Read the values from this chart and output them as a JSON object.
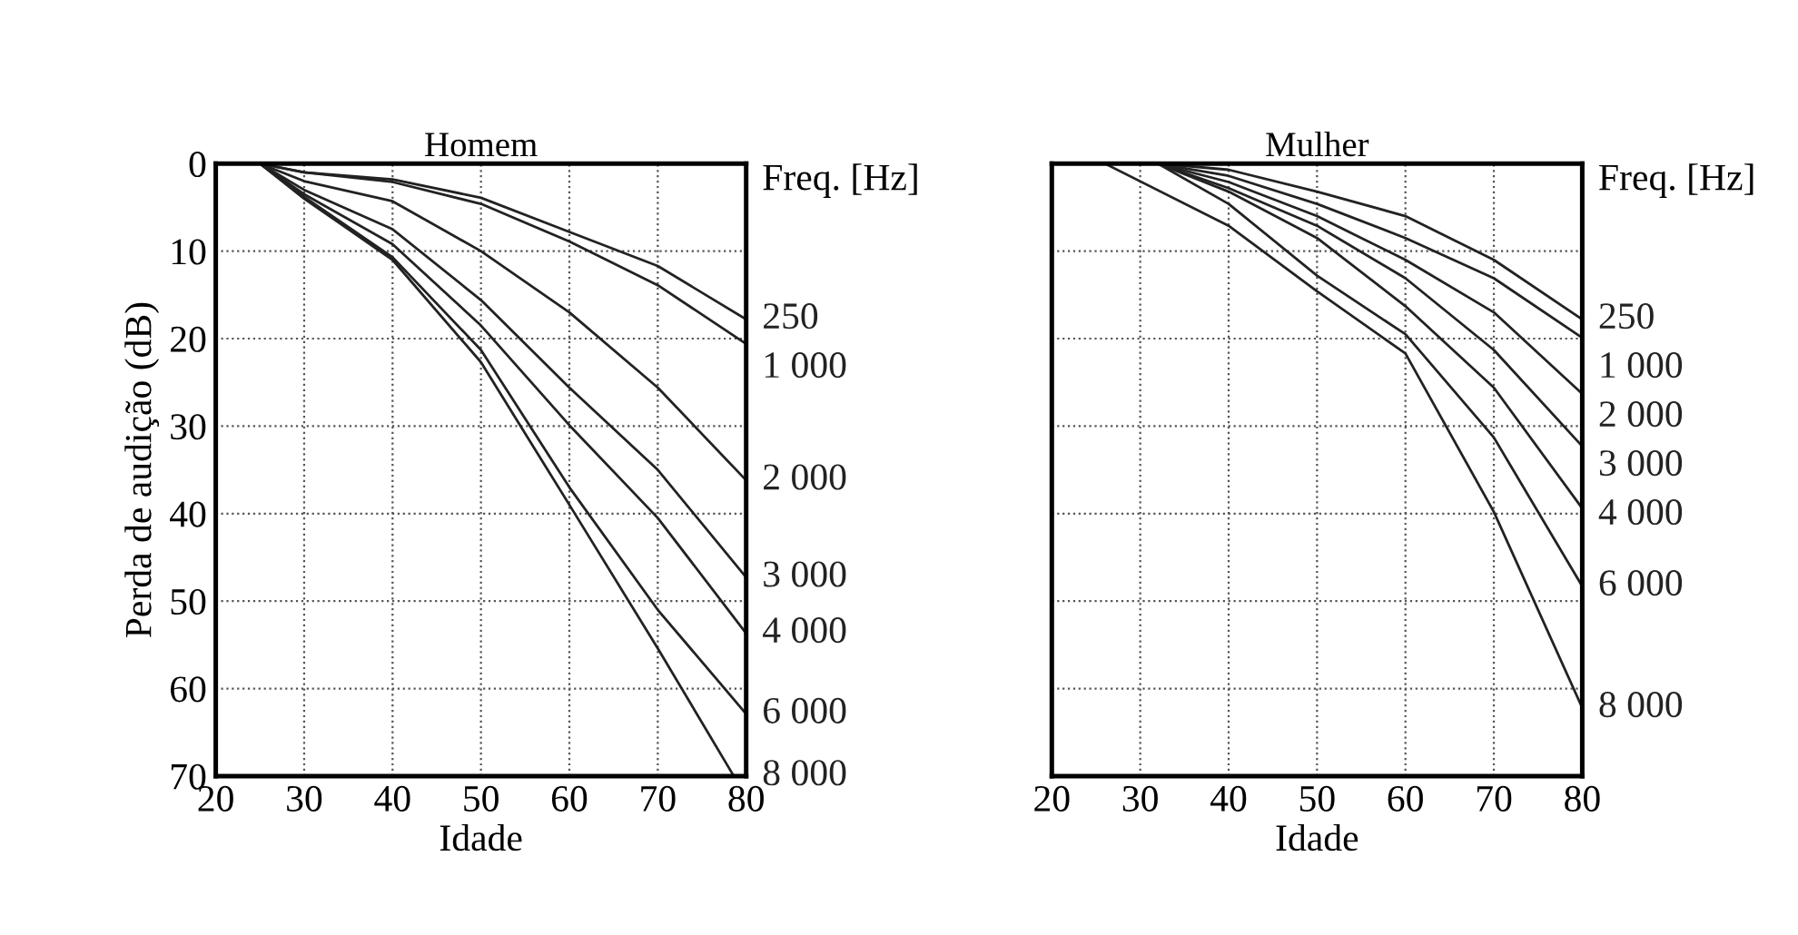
{
  "chart_data": [
    {
      "type": "line",
      "title": "Homem",
      "xlabel": "Idade",
      "ylabel": "Perda de audição (dB)",
      "legend_title": "Freq. [Hz]",
      "xlim": [
        20,
        80
      ],
      "ylim": [
        70,
        0
      ],
      "xticks": [
        20,
        30,
        40,
        50,
        60,
        70,
        80
      ],
      "yticks": [
        0,
        10,
        20,
        30,
        40,
        50,
        60,
        70
      ],
      "grid": true,
      "line_style": "solid",
      "marker": "none",
      "series": [
        {
          "name": "250",
          "color": "#222222",
          "x": [
            25,
            30,
            40,
            50,
            60,
            70,
            80
          ],
          "values": [
            0,
            1,
            1.8,
            3.9,
            7.8,
            11.7,
            17.8
          ]
        },
        {
          "name": "1 000",
          "color": "#222222",
          "x": [
            25,
            30,
            40,
            50,
            60,
            70,
            80
          ],
          "values": [
            0,
            1,
            2.1,
            4.6,
            8.9,
            13.9,
            20.6
          ]
        },
        {
          "name": "2 000",
          "color": "#222222",
          "x": [
            25,
            30,
            40,
            50,
            60,
            70,
            80
          ],
          "values": [
            0,
            2,
            4.3,
            10,
            17,
            25.6,
            36.2
          ]
        },
        {
          "name": "3 000",
          "color": "#222222",
          "x": [
            25,
            30,
            40,
            50,
            60,
            70,
            80
          ],
          "values": [
            0,
            3,
            7.5,
            15.6,
            25.6,
            35,
            47.3
          ]
        },
        {
          "name": "4 000",
          "color": "#222222",
          "x": [
            25,
            30,
            40,
            50,
            60,
            70,
            80
          ],
          "values": [
            0,
            3.5,
            9.2,
            18.5,
            29.9,
            40.5,
            53.7
          ]
        },
        {
          "name": "6 000",
          "color": "#222222",
          "x": [
            25,
            30,
            40,
            50,
            60,
            70,
            80
          ],
          "values": [
            0,
            3.8,
            10.7,
            21.3,
            37,
            51,
            62.9
          ]
        },
        {
          "name": "8 000",
          "color": "#222222",
          "x": [
            25,
            30,
            40,
            50,
            60,
            70,
            78.6
          ],
          "values": [
            0,
            4,
            11,
            22.7,
            39,
            55.4,
            70
          ]
        }
      ]
    },
    {
      "type": "line",
      "title": "Mulher",
      "xlabel": "Idade",
      "legend_title": "Freq. [Hz]",
      "xlim": [
        20,
        80
      ],
      "ylim": [
        70,
        0
      ],
      "xticks": [
        20,
        30,
        40,
        50,
        60,
        70,
        80
      ],
      "yticks": [
        0,
        10,
        20,
        30,
        40,
        50,
        60,
        70
      ],
      "grid": true,
      "tick_labels": "x",
      "line_style": "solid",
      "marker": "none",
      "series": [
        {
          "name": "250",
          "color": "#222222",
          "x": [
            32,
            40,
            50,
            60,
            70,
            80
          ],
          "values": [
            0,
            0.7,
            3.2,
            6,
            11,
            17.8
          ]
        },
        {
          "name": "1 000",
          "color": "#222222",
          "x": [
            32,
            40,
            50,
            60,
            70,
            80
          ],
          "values": [
            0,
            1.4,
            4.6,
            8.5,
            13.1,
            19.9
          ]
        },
        {
          "name": "2 000",
          "color": "#222222",
          "x": [
            32,
            40,
            50,
            60,
            70,
            80
          ],
          "values": [
            0,
            2.1,
            6,
            11,
            17,
            26.3
          ]
        },
        {
          "name": "3 000",
          "color": "#222222",
          "x": [
            32,
            40,
            50,
            60,
            70,
            80
          ],
          "values": [
            0,
            2.8,
            7.1,
            13.1,
            21.3,
            32.3
          ]
        },
        {
          "name": "4 000",
          "color": "#222222",
          "x": [
            32,
            40,
            50,
            60,
            70,
            80
          ],
          "values": [
            0,
            3.2,
            8.5,
            16.3,
            25.6,
            39.4
          ]
        },
        {
          "name": "6 000",
          "color": "#222222",
          "x": [
            32,
            40,
            50,
            60,
            70,
            80
          ],
          "values": [
            0,
            4.6,
            12.8,
            19.5,
            31.3,
            48.3
          ]
        },
        {
          "name": "8 000",
          "color": "#222222",
          "x": [
            26,
            40,
            50,
            60,
            70,
            80
          ],
          "values": [
            0,
            7.1,
            14.6,
            21.7,
            39.8,
            62.2
          ]
        }
      ]
    }
  ]
}
